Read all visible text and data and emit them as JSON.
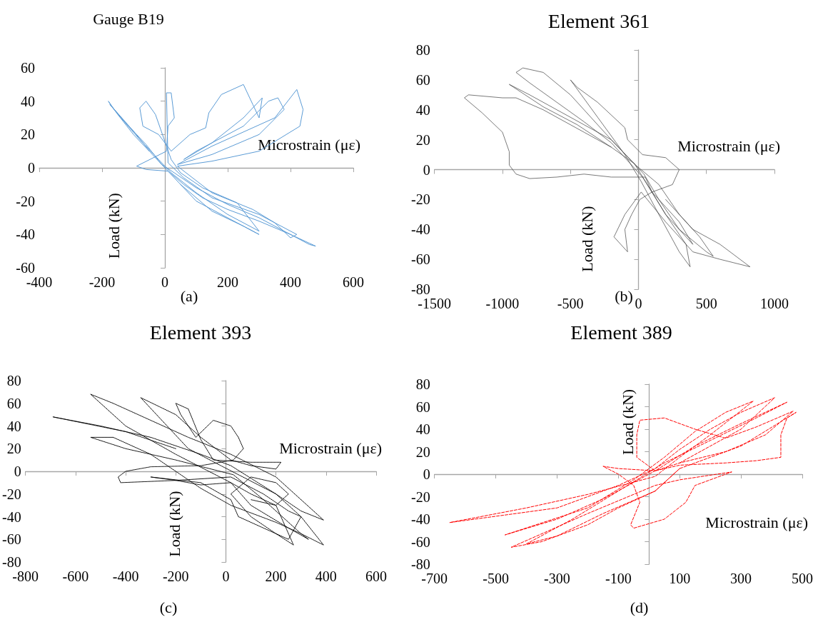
{
  "chart_data": [
    {
      "type": "line",
      "title": "Gauge B19",
      "xlabel": "Microstrain (με)",
      "ylabel": "Load (kN)",
      "annotations": [
        "(a)"
      ],
      "xlim": [
        -400,
        600
      ],
      "xticks": [
        -400,
        -200,
        0,
        200,
        400,
        600
      ],
      "ylim": [
        -60,
        60
      ],
      "yticks": [
        -60,
        -40,
        -20,
        0,
        20,
        40,
        60
      ],
      "marker": "none",
      "line_style": "solid",
      "series": [
        {
          "color": "#5b9bd5",
          "x": [
            -50,
            -100,
            -150,
            -180,
            -170,
            -100,
            -40,
            10,
            60,
            120,
            200,
            300,
            400,
            480,
            460,
            400,
            300,
            200,
            100,
            30,
            -10,
            -60,
            -120,
            -175,
            -140,
            -80,
            -20,
            20,
            100,
            200,
            300,
            230,
            120,
            50,
            20,
            -30,
            -60,
            -80,
            -70,
            -20,
            20,
            80,
            130,
            140,
            180,
            250,
            280,
            300,
            310,
            250,
            150,
            60,
            100,
            250,
            330,
            360,
            380,
            300,
            150,
            40,
            150,
            350,
            420,
            440,
            430,
            300,
            150,
            40,
            150,
            280,
            350,
            400,
            420,
            300,
            150,
            60,
            10,
            5,
            20,
            30,
            10,
            5,
            -90,
            -60,
            10,
            100,
            200,
            300,
            250,
            150,
            50
          ],
          "values": [
            10,
            20,
            32,
            40,
            37,
            22,
            8,
            -2,
            -10,
            -18,
            -25,
            -32,
            -40,
            -47,
            -46,
            -40,
            -30,
            -22,
            -12,
            -3,
            2,
            14,
            26,
            38,
            30,
            17,
            5,
            -3,
            -15,
            -28,
            -38,
            -21,
            -12,
            -3,
            5,
            32,
            40,
            36,
            25,
            20,
            10,
            20,
            24,
            33,
            44,
            50,
            38,
            30,
            42,
            30,
            15,
            5,
            10,
            25,
            40,
            42,
            35,
            20,
            8,
            2,
            13,
            30,
            47,
            35,
            25,
            10,
            4,
            1,
            -15,
            -25,
            -33,
            -42,
            -40,
            -28,
            -18,
            -6,
            3,
            45,
            45,
            30,
            25,
            10,
            1,
            -1,
            -2,
            -20,
            -30,
            -40,
            -35,
            -26,
            -10
          ]
        }
      ]
    },
    {
      "type": "line",
      "title": "Element 361",
      "xlabel": "Microstrain (με)",
      "ylabel": "Load (kN)",
      "annotations": [
        "(b)"
      ],
      "xlim": [
        -1500,
        1000
      ],
      "xticks": [
        -1500,
        -1000,
        -500,
        0,
        500,
        1000
      ],
      "ylim": [
        -80,
        80
      ],
      "yticks": [
        -80,
        -60,
        -40,
        -20,
        0,
        20,
        40,
        60,
        80
      ],
      "marker": "none",
      "line_style": "solid",
      "series": [
        {
          "color": "#404040",
          "x": [
            -200,
            -400,
            -700,
            -900,
            -1000,
            -1250,
            -1280,
            -1150,
            -1000,
            -950,
            -950,
            -900,
            -800,
            -600,
            -400,
            -200,
            50,
            100,
            200,
            300,
            400,
            300,
            200,
            100,
            -30,
            -200,
            -450,
            -700,
            -950,
            -800,
            -600,
            -400,
            -200,
            40,
            150,
            300,
            500,
            550,
            450,
            300,
            150,
            -20,
            -200,
            -500,
            -700,
            -850,
            -900,
            -800,
            -600,
            -400,
            -200,
            30,
            200,
            350,
            380,
            300,
            150,
            20,
            -100,
            -300,
            -500,
            -450,
            -300,
            -100,
            -80,
            30,
            200,
            300,
            250,
            100,
            10,
            -50,
            -100,
            -80,
            -180,
            -100,
            20,
            200,
            400,
            600,
            820,
            600,
            400,
            200
          ],
          "values": [
            15,
            25,
            40,
            48,
            48,
            50,
            48,
            38,
            25,
            12,
            3,
            -3,
            -6,
            -5,
            -3,
            -5,
            -5,
            -15,
            -25,
            -35,
            -50,
            -40,
            -30,
            -15,
            4,
            15,
            30,
            42,
            57,
            50,
            40,
            30,
            20,
            -3,
            -20,
            -40,
            -55,
            -58,
            -45,
            -30,
            -10,
            3,
            20,
            50,
            65,
            68,
            65,
            58,
            45,
            32,
            18,
            -5,
            -30,
            -50,
            -65,
            -55,
            -30,
            -8,
            10,
            35,
            60,
            55,
            45,
            28,
            20,
            10,
            8,
            0,
            -10,
            -15,
            -20,
            -30,
            -40,
            -55,
            -45,
            -30,
            -15,
            -35,
            -55,
            -60,
            -65,
            -50,
            -40,
            -20
          ]
        }
      ]
    },
    {
      "type": "line",
      "title": "Element 393",
      "xlabel": "Microstrain (με)",
      "ylabel": "Load (kN)",
      "annotations": [
        "(c)"
      ],
      "xlim": [
        -800,
        600
      ],
      "xticks": [
        -800,
        -600,
        -400,
        -200,
        0,
        200,
        400,
        600
      ],
      "ylim": [
        -80,
        80
      ],
      "yticks": [
        -80,
        -60,
        -40,
        -20,
        0,
        20,
        40,
        60,
        80
      ],
      "marker": "none",
      "line_style": "dotted",
      "series": [
        {
          "color": "#000000",
          "x": [
            -200,
            -400,
            -690,
            -500,
            -300,
            -100,
            20,
            200,
            300,
            390,
            300,
            200,
            20,
            -100,
            -200,
            -300,
            -450,
            -540,
            -400,
            -200,
            30,
            150,
            300,
            330,
            250,
            100,
            20,
            -200,
            -400,
            -540,
            -450,
            -300,
            -150,
            20,
            200,
            390,
            300,
            200,
            -20,
            -150,
            -340,
            -200,
            -100,
            20,
            100,
            200,
            220,
            100,
            -50,
            -100,
            -150,
            -200,
            -180,
            -120,
            -50,
            20,
            50,
            70,
            30,
            -100,
            -300,
            -400,
            -430,
            -420,
            -200,
            20,
            150,
            250,
            300,
            250,
            150,
            50,
            20,
            -100,
            -300,
            -200,
            -100,
            20,
            100,
            200,
            270,
            200,
            100,
            20,
            100,
            200,
            250,
            200,
            100
          ],
          "values": [
            20,
            35,
            48,
            40,
            30,
            15,
            5,
            -20,
            -40,
            -65,
            -55,
            -45,
            -30,
            -15,
            0,
            15,
            30,
            30,
            20,
            10,
            -3,
            -25,
            -55,
            -60,
            -50,
            -30,
            -10,
            15,
            40,
            68,
            60,
            45,
            30,
            15,
            -5,
            -43,
            -35,
            -20,
            5,
            20,
            65,
            50,
            30,
            10,
            5,
            2,
            8,
            8,
            10,
            28,
            55,
            60,
            50,
            30,
            45,
            40,
            30,
            20,
            10,
            5,
            4,
            0,
            -5,
            -10,
            -8,
            -5,
            -20,
            -35,
            -40,
            -60,
            -50,
            -40,
            -25,
            -10,
            -5,
            -8,
            -12,
            -10,
            -20,
            -30,
            -65,
            -55,
            -40,
            -20,
            -5,
            -10,
            -20,
            -30,
            -25
          ]
        }
      ]
    },
    {
      "type": "line",
      "title": "Element 389",
      "xlabel": "Microstrain (με)",
      "ylabel": "Load (kN)",
      "annotations": [
        "(d)"
      ],
      "xlim": [
        -700,
        500
      ],
      "xticks": [
        -700,
        -500,
        -300,
        -100,
        100,
        300,
        500
      ],
      "ylim": [
        -80,
        80
      ],
      "yticks": [
        -80,
        -60,
        -40,
        -20,
        0,
        20,
        40,
        60,
        80
      ],
      "marker": "none",
      "line_style": "dashed",
      "series": [
        {
          "color": "#ff0000",
          "x": [
            100,
            200,
            300,
            410,
            300,
            200,
            100,
            20,
            -100,
            -300,
            -650,
            -400,
            -200,
            20,
            100,
            200,
            340,
            250,
            150,
            50,
            -50,
            -200,
            -470,
            -300,
            -150,
            20,
            150,
            300,
            450,
            350,
            200,
            50,
            -100,
            -250,
            -400,
            -300,
            -150,
            20,
            100,
            200,
            300,
            480,
            450,
            430,
            430,
            350,
            250,
            100,
            20,
            -40,
            -40,
            -30,
            50,
            150,
            250,
            350,
            470,
            380,
            250,
            100,
            20,
            -100,
            -150,
            -100,
            -50,
            -30,
            -60,
            -50,
            50,
            120,
            150,
            270,
            100,
            20,
            -200,
            -450,
            -350,
            -200,
            -100,
            20,
            100
          ],
          "values": [
            10,
            25,
            40,
            68,
            55,
            40,
            22,
            5,
            -10,
            -30,
            -43,
            -30,
            -18,
            -2,
            15,
            35,
            65,
            55,
            38,
            15,
            -5,
            -30,
            -54,
            -40,
            -22,
            3,
            25,
            45,
            64,
            50,
            30,
            10,
            -15,
            -40,
            -62,
            -55,
            -35,
            -15,
            5,
            15,
            25,
            55,
            50,
            35,
            15,
            12,
            10,
            8,
            3,
            15,
            35,
            48,
            50,
            40,
            32,
            42,
            56,
            35,
            20,
            10,
            3,
            5,
            7,
            0,
            -10,
            -25,
            -45,
            -48,
            -40,
            -25,
            -10,
            2,
            -5,
            -10,
            -35,
            -65,
            -60,
            -45,
            -30,
            -15,
            5
          ]
        }
      ]
    }
  ]
}
